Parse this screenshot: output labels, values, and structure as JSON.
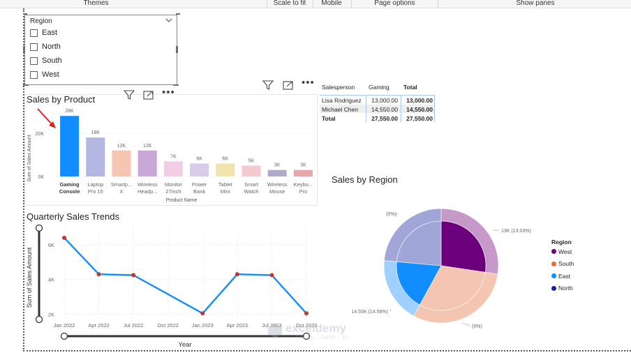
{
  "ribbon": {
    "items": [
      "Themes",
      "Scale to fit",
      "Mobile",
      "Page options",
      "Show panes"
    ]
  },
  "slicer": {
    "title": "Region",
    "options": [
      "East",
      "North",
      "South",
      "West"
    ]
  },
  "sales_by_product": {
    "title": "Sales by Product",
    "ylabel": "Sum of Sales Amount",
    "xlabel": "Product Name"
  },
  "matrix": {
    "headers": [
      "Salesperson",
      "Gaming",
      "Total"
    ],
    "rows": [
      {
        "name": "Lisa Rodriguez",
        "gaming": "13,000.00",
        "total": "13,000.00"
      },
      {
        "name": "Michael Chen",
        "gaming": "14,550.00",
        "total": "14,550.00"
      }
    ],
    "total": {
      "name": "Total",
      "gaming": "27,550.00",
      "total": "27,550.00"
    }
  },
  "sales_by_region": {
    "title": "Sales by Region",
    "legend_title": "Region",
    "legend": [
      {
        "name": "West",
        "color": "#6b007b"
      },
      {
        "name": "South",
        "color": "#e66c37"
      },
      {
        "name": "East",
        "color": "#118dff"
      },
      {
        "name": "North",
        "color": "#12239e"
      }
    ],
    "labels": [
      "13K (13.03%)",
      "14.55K (14.58%)",
      "(0%)",
      "(0%)"
    ]
  },
  "quarterly_trends": {
    "title": "Quarterly Sales Trends",
    "ylabel": "Sum of Sales Amount",
    "xlabel": "Year"
  },
  "watermark": {
    "name": "exceldemy",
    "tagline": "EXCEL · DATA · BI"
  },
  "chart_data": [
    {
      "type": "bar",
      "title": "Sales by Product",
      "xlabel": "Product Name",
      "ylabel": "Sum of Sales Amount",
      "categories": [
        [
          "Gaming",
          "Console"
        ],
        [
          "Laptop",
          "Pro 15"
        ],
        [
          "Smartp...",
          "X"
        ],
        [
          "Wireless",
          "Headp..."
        ],
        [
          "Monitor",
          "27inch"
        ],
        [
          "Power",
          "Bank"
        ],
        [
          "Tablet",
          "Mini"
        ],
        [
          "Smart",
          "Watch"
        ],
        [
          "Wireless",
          "Mouse"
        ],
        [
          "Keybo...",
          "Pro"
        ]
      ],
      "values": [
        28000,
        18000,
        12000,
        12000,
        7000,
        6000,
        6000,
        5000,
        3000,
        3000
      ],
      "data_labels": [
        "28K",
        "18K",
        "12K",
        "12K",
        "7K",
        "6K",
        "6K",
        "5K",
        "3K",
        "3K"
      ],
      "colors": [
        "#118dff",
        "#b3b6e0",
        "#f5c6b1",
        "#c9a7d6",
        "#f2cde3",
        "#d8cce8",
        "#f0e3ab",
        "#f6c8cf",
        "#b0aac8",
        "#e7a6aa"
      ],
      "yticks": [
        "0K",
        "20K"
      ],
      "ytick_values": [
        0,
        20000
      ],
      "ylim": [
        0,
        30000
      ]
    },
    {
      "type": "line",
      "title": "Quarterly Sales Trends",
      "xlabel": "Year",
      "ylabel": "Sum of Sales Amount",
      "x": [
        "Jan 2022",
        "Apr 2022",
        "Jul 2022",
        "Oct 2022",
        "Jan 2023",
        "Apr 2023",
        "Jul 2023",
        "Oct 2023"
      ],
      "values": [
        6400,
        4300,
        4250,
        null,
        2050,
        4300,
        4250,
        2050
      ],
      "yticks": [
        "2K",
        "4K",
        "6K"
      ],
      "ytick_values": [
        2000,
        4000,
        6000
      ],
      "ylim": [
        1700,
        7000
      ],
      "line_color": "#118dff",
      "marker_color": "#c0392b"
    },
    {
      "type": "pie",
      "title": "Sales by Region",
      "slices": [
        {
          "name": "West",
          "value": 13000,
          "inner_color": "#6b007b",
          "outer_color": "#c699c9"
        },
        {
          "name": "South",
          "value": 14550,
          "inner_color": "#f4c5b0",
          "outer_color": "#f4c5b0"
        },
        {
          "name": "East",
          "value": 8800,
          "inner_color": "#118dff",
          "outer_color": "#a0d0ff"
        },
        {
          "name": "North",
          "value": 11200,
          "inner_color": "#a0a6d8",
          "outer_color": "#a0a6d8"
        }
      ]
    }
  ]
}
